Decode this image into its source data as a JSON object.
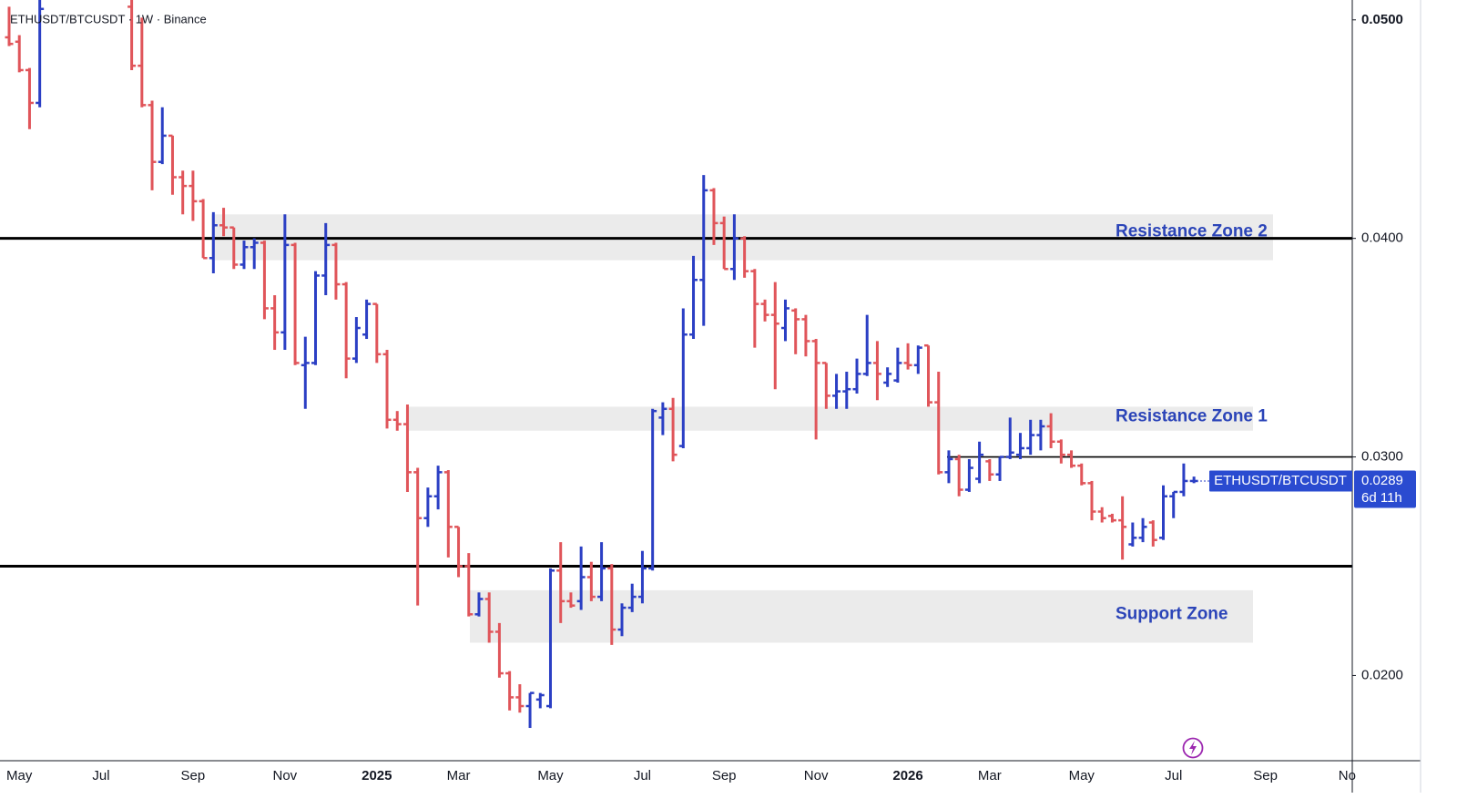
{
  "chart_data": {
    "type": "ohlc",
    "title": "ETHUSDT/BTCUSDT · 1W · Binance",
    "up_color": "#2b3fc4",
    "down_color": "#e0555a",
    "ylim": [
      0.0161,
      0.0507
    ],
    "yticks": [
      {
        "value": 0.05,
        "label": "0.0500"
      },
      {
        "value": 0.04,
        "label": "0.0400"
      },
      {
        "value": 0.03,
        "label": "0.0300"
      },
      {
        "value": 0.02,
        "label": "0.0200"
      }
    ],
    "categories": [
      null,
      "May",
      null,
      null,
      null,
      null,
      null,
      null,
      null,
      "Jul",
      null,
      null,
      null,
      null,
      null,
      null,
      null,
      null,
      "Sep",
      null,
      null,
      null,
      null,
      null,
      null,
      null,
      null,
      "Nov",
      null,
      null,
      null,
      null,
      null,
      null,
      null,
      null,
      "2025",
      null,
      null,
      null,
      null,
      null,
      null,
      null,
      "Mar",
      null,
      null,
      null,
      null,
      null,
      null,
      null,
      null,
      "May",
      null,
      null,
      null,
      null,
      null,
      null,
      null,
      null,
      "Jul",
      null,
      null,
      null,
      null,
      null,
      null,
      null,
      "Sep",
      null,
      null,
      null,
      null,
      null,
      null,
      null,
      null,
      "Nov",
      null,
      null,
      null,
      null,
      null,
      null,
      null,
      null,
      "2026",
      null,
      null,
      null,
      null,
      null,
      null,
      null,
      "Mar",
      null,
      null,
      null,
      null,
      null,
      null,
      null,
      null,
      "May",
      null,
      null,
      null,
      null,
      null,
      null,
      null,
      null,
      "Jul",
      null,
      null,
      null,
      null,
      null,
      null,
      null,
      null,
      "Sep",
      null,
      null,
      null,
      null,
      null,
      null,
      null,
      "No"
    ],
    "open": [
      0.0492,
      0.049,
      0.0477,
      0.0462,
      null,
      null,
      null,
      null,
      null,
      null,
      null,
      null,
      0.0506,
      0.0479,
      0.0461,
      0.0435,
      0.0447,
      0.0428,
      0.0424,
      0.0417,
      0.0391,
      0.0406,
      0.0405,
      0.0388,
      0.0396,
      0.0398,
      0.0368,
      0.0357,
      0.0397,
      0.0342,
      0.0343,
      0.0383,
      0.0397,
      0.0379,
      0.0345,
      0.0356,
      0.037,
      0.0347,
      0.0317,
      0.0315,
      0.0293,
      0.0272,
      0.0282,
      0.0293,
      0.0268,
      0.025,
      0.0228,
      0.0235,
      0.022,
      0.0201,
      0.019,
      0.0186,
      0.0189,
      0.0186,
      0.0248,
      0.0234,
      0.0234,
      0.0245,
      0.0236,
      0.0249,
      0.0221,
      0.0231,
      0.0236,
      0.0249,
      0.0318,
      0.0322,
      0.0305,
      0.0356,
      0.0381,
      0.0422,
      0.0407,
      0.0386,
      0.04,
      0.0385,
      0.037,
      0.0365,
      0.0359,
      0.0367,
      0.0363,
      0.0353,
      0.0343,
      0.0328,
      0.033,
      0.0331,
      0.0338,
      0.0343,
      0.0334,
      0.0335,
      0.0343,
      0.0342,
      0.0351,
      0.0325,
      0.0293,
      0.0299,
      0.0285,
      0.029,
      0.0298,
      0.0292,
      0.03,
      0.0301,
      0.0304,
      0.031,
      0.0314,
      0.0307,
      0.0301,
      0.0296,
      0.0288,
      0.0275,
      0.0273,
      0.0271,
      0.026,
      0.0263,
      0.027,
      0.0263,
      0.0282,
      0.0284,
      0.0289,
      null,
      null,
      null,
      null,
      null,
      null,
      null,
      null,
      null,
      null,
      null,
      null,
      null,
      null,
      null
    ],
    "high": [
      0.0506,
      0.0493,
      0.0478,
      0.051,
      null,
      null,
      null,
      null,
      null,
      null,
      null,
      null,
      0.051,
      0.0501,
      0.0463,
      0.046,
      0.0447,
      0.0431,
      0.0431,
      0.0418,
      0.0412,
      0.0414,
      0.0405,
      0.0399,
      0.04,
      0.0399,
      0.0374,
      0.0411,
      0.0398,
      0.0355,
      0.0385,
      0.0407,
      0.0398,
      0.038,
      0.0364,
      0.0372,
      0.037,
      0.0349,
      0.0321,
      0.0324,
      0.0295,
      0.0286,
      0.0296,
      0.0294,
      0.0268,
      0.0256,
      0.0238,
      0.0238,
      0.0224,
      0.0202,
      0.0196,
      0.0192,
      0.0192,
      0.0249,
      0.0261,
      0.0238,
      0.0259,
      0.0252,
      0.0261,
      0.0251,
      0.0233,
      0.0242,
      0.0257,
      0.0322,
      0.0325,
      0.0327,
      0.0368,
      0.0392,
      0.0429,
      0.0423,
      0.041,
      0.0411,
      0.0401,
      0.0386,
      0.0372,
      0.038,
      0.0372,
      0.0368,
      0.0365,
      0.0354,
      0.0343,
      0.0338,
      0.0339,
      0.0345,
      0.0365,
      0.0353,
      0.0341,
      0.035,
      0.0352,
      0.0351,
      0.0351,
      0.0339,
      0.0303,
      0.0301,
      0.0299,
      0.0307,
      0.0299,
      0.03,
      0.0318,
      0.0311,
      0.0317,
      0.0317,
      0.032,
      0.0308,
      0.0303,
      0.0297,
      0.0289,
      0.0277,
      0.0274,
      0.0282,
      0.027,
      0.0272,
      0.0271,
      0.0287,
      0.0284,
      0.0297,
      0.0291,
      null,
      null,
      null,
      null,
      null,
      null,
      null,
      null,
      null,
      null,
      null,
      null,
      null,
      null,
      null
    ],
    "low": [
      0.0488,
      0.0476,
      0.045,
      0.046,
      null,
      null,
      null,
      null,
      null,
      null,
      null,
      null,
      0.0477,
      0.046,
      0.0422,
      0.0434,
      0.042,
      0.0411,
      0.0408,
      0.0391,
      0.0384,
      0.0401,
      0.0386,
      0.0386,
      0.0386,
      0.0363,
      0.0349,
      0.0349,
      0.0342,
      0.0322,
      0.0342,
      0.0374,
      0.0372,
      0.0336,
      0.0343,
      0.0354,
      0.0343,
      0.0313,
      0.0312,
      0.0284,
      0.0232,
      0.0268,
      0.0276,
      0.0254,
      0.0245,
      0.0227,
      0.0227,
      0.0215,
      0.0199,
      0.0184,
      0.0183,
      0.0176,
      0.0185,
      0.0185,
      0.0224,
      0.0231,
      0.023,
      0.0234,
      0.0234,
      0.0214,
      0.0218,
      0.0229,
      0.0233,
      0.0248,
      0.031,
      0.0298,
      0.0304,
      0.0354,
      0.036,
      0.0397,
      0.0386,
      0.0381,
      0.0382,
      0.035,
      0.0362,
      0.0331,
      0.0353,
      0.0347,
      0.0346,
      0.0308,
      0.0322,
      0.0322,
      0.0322,
      0.0329,
      0.0337,
      0.0326,
      0.0332,
      0.0334,
      0.034,
      0.0338,
      0.0323,
      0.0292,
      0.0288,
      0.0282,
      0.0284,
      0.0288,
      0.0289,
      0.0289,
      0.0299,
      0.0299,
      0.0301,
      0.0303,
      0.0304,
      0.0297,
      0.0295,
      0.0287,
      0.0271,
      0.027,
      0.027,
      0.0253,
      0.0259,
      0.0261,
      0.0259,
      0.0262,
      0.0272,
      0.0282,
      0.0288,
      null,
      null,
      null,
      null,
      null,
      null,
      null,
      null,
      null,
      null,
      null,
      null,
      null,
      null,
      null
    ],
    "close": [
      0.0489,
      0.0477,
      0.0462,
      0.0505,
      null,
      null,
      null,
      null,
      null,
      null,
      null,
      null,
      0.0479,
      0.0461,
      0.0435,
      0.0447,
      0.0428,
      0.0424,
      0.0417,
      0.0391,
      0.0406,
      0.0405,
      0.0388,
      0.0396,
      0.0398,
      0.0368,
      0.0357,
      0.0397,
      0.0343,
      0.0343,
      0.0383,
      0.0397,
      0.0379,
      0.0345,
      0.0359,
      0.037,
      0.0347,
      0.0317,
      0.0315,
      0.0293,
      0.0272,
      0.0282,
      0.0293,
      0.0268,
      0.025,
      0.0228,
      0.0235,
      0.022,
      0.0201,
      0.019,
      0.0186,
      0.0192,
      0.0191,
      0.0248,
      0.0234,
      0.0232,
      0.0245,
      0.0236,
      0.0249,
      0.0221,
      0.0231,
      0.0236,
      0.0249,
      0.0321,
      0.0322,
      0.0301,
      0.0356,
      0.0381,
      0.0422,
      0.0407,
      0.0386,
      0.04,
      0.0385,
      0.037,
      0.0365,
      0.0361,
      0.0368,
      0.0363,
      0.0353,
      0.0343,
      0.0328,
      0.033,
      0.0331,
      0.0338,
      0.0343,
      0.0338,
      0.0338,
      0.0343,
      0.0342,
      0.035,
      0.0325,
      0.0293,
      0.0299,
      0.0285,
      0.0295,
      0.0301,
      0.0292,
      0.03,
      0.0302,
      0.0304,
      0.031,
      0.0314,
      0.0307,
      0.0301,
      0.0296,
      0.0288,
      0.0275,
      0.0272,
      0.0271,
      0.0268,
      0.0263,
      0.0268,
      0.0262,
      0.0282,
      0.0284,
      0.0289,
      0.0289,
      null,
      null,
      null,
      null,
      null,
      null,
      null,
      null,
      null,
      null,
      null,
      null,
      null,
      null,
      null
    ],
    "levels": [
      0.04,
      0.03,
      0.025
    ],
    "zones": [
      {
        "label": "Resistance Zone 2",
        "top": 0.0411,
        "bottom": 0.039
      },
      {
        "label": "Resistance Zone 1",
        "top": 0.0323,
        "bottom": 0.0312
      },
      {
        "label": "Support Zone",
        "top": 0.0239,
        "bottom": 0.0215
      }
    ],
    "last_price": {
      "name": "ETHUSDT/BTCUSDT",
      "value": 0.0289,
      "countdown": "6d 11h"
    }
  }
}
